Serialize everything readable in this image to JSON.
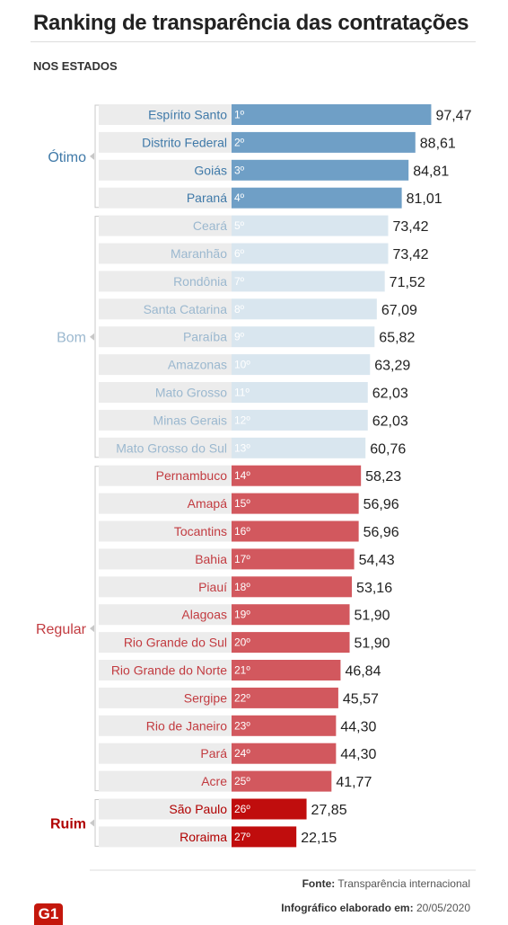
{
  "title": "Ranking de transparência das contratações",
  "subtitle": "NOS ESTADOS",
  "source": {
    "label": "Fonte:",
    "value": "Transparência internacional"
  },
  "credit": {
    "label": "Infográfico elaborado em:",
    "value": "20/05/2020"
  },
  "logo": "G1",
  "colors": {
    "otimo": "#6f9fc6",
    "bom": "#d9e6ef",
    "regular": "#d2585e",
    "ruim": "#c00d0d",
    "row_bg": "#ececec",
    "otimo_text": "#3f79a8",
    "bom_text": "#9bb8cf",
    "regular_text": "#c23b40",
    "ruim_text": "#b00000"
  },
  "chart_data": {
    "type": "bar",
    "orientation": "horizontal",
    "categories": [
      "Espírito Santo",
      "Distrito Federal",
      "Goiás",
      "Paraná",
      "Ceará",
      "Maranhão",
      "Rondônia",
      "Santa Catarina",
      "Paraíba",
      "Amazonas",
      "Mato Grosso",
      "Minas Gerais",
      "Mato Grosso do Sul",
      "Pernambuco",
      "Amapá",
      "Tocantins",
      "Bahia",
      "Piauí",
      "Alagoas",
      "Rio Grande do Sul",
      "Rio Grande do Norte",
      "Sergipe",
      "Rio de Janeiro",
      "Pará",
      "Acre",
      "São Paulo",
      "Roraima"
    ],
    "ranks": [
      "1º",
      "2º",
      "3º",
      "4º",
      "5º",
      "6º",
      "7º",
      "8º",
      "9º",
      "10º",
      "11º",
      "12º",
      "13º",
      "14º",
      "15º",
      "16º",
      "17º",
      "18º",
      "19º",
      "20º",
      "21º",
      "22º",
      "23º",
      "24º",
      "25º",
      "26º",
      "27º"
    ],
    "values": [
      97.47,
      88.61,
      84.81,
      81.01,
      73.42,
      73.42,
      71.52,
      67.09,
      65.82,
      63.29,
      62.03,
      62.03,
      60.76,
      58.23,
      56.96,
      56.96,
      54.43,
      53.16,
      51.9,
      51.9,
      46.84,
      45.57,
      44.3,
      44.3,
      41.77,
      27.85,
      22.15
    ],
    "value_labels": [
      "97,47",
      "88,61",
      "84,81",
      "81,01",
      "73,42",
      "73,42",
      "71,52",
      "67,09",
      "65,82",
      "63,29",
      "62,03",
      "62,03",
      "60,76",
      "58,23",
      "56,96",
      "56,96",
      "54,43",
      "53,16",
      "51,90",
      "51,90",
      "46,84",
      "45,57",
      "44,30",
      "44,30",
      "41,77",
      "27,85",
      "22,15"
    ],
    "groups": [
      {
        "name": "Ótimo",
        "key": "otimo",
        "from": 0,
        "to": 3
      },
      {
        "name": "Bom",
        "key": "bom",
        "from": 4,
        "to": 12
      },
      {
        "name": "Regular",
        "key": "regular",
        "from": 13,
        "to": 24
      },
      {
        "name": "Ruim",
        "key": "ruim",
        "from": 25,
        "to": 26
      }
    ],
    "xlim": [
      0,
      100
    ]
  }
}
